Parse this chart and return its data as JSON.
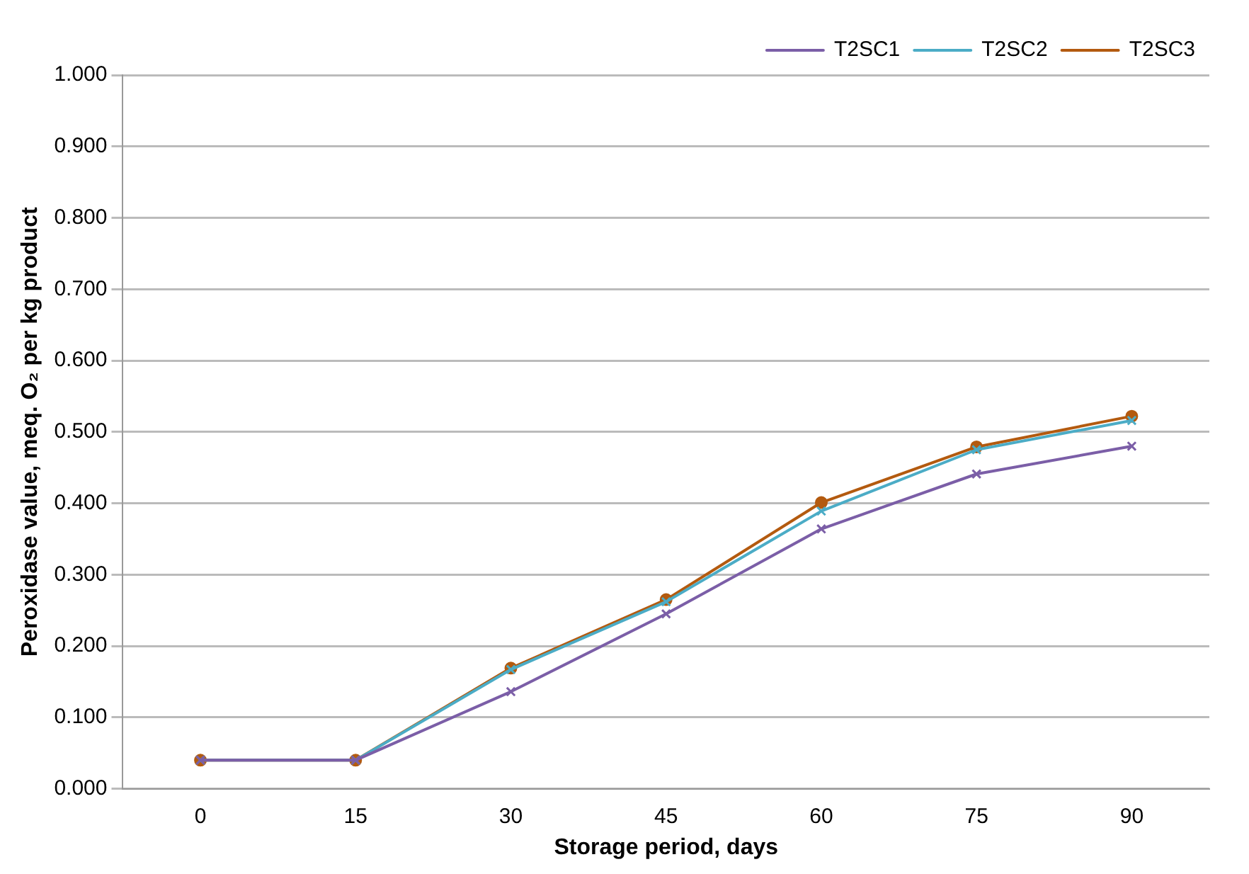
{
  "chart_data": {
    "type": "line",
    "xlabel": "Storage period, days",
    "ylabel": "Peroxidase value, meq. O₂ per kg product",
    "categories": [
      "0",
      "15",
      "30",
      "45",
      "60",
      "75",
      "90"
    ],
    "series": [
      {
        "name": "T2SC1",
        "color": "#7b5ea7",
        "marker": "cross",
        "values": [
          0.04,
          0.04,
          0.136,
          0.245,
          0.364,
          0.441,
          0.48
        ]
      },
      {
        "name": "T2SC2",
        "color": "#4bacc6",
        "marker": "cross",
        "values": [
          0.04,
          0.04,
          0.167,
          0.262,
          0.389,
          0.475,
          0.516
        ]
      },
      {
        "name": "T2SC3",
        "color": "#b35a0f",
        "marker": "circle",
        "values": [
          0.04,
          0.04,
          0.169,
          0.265,
          0.401,
          0.479,
          0.522
        ]
      }
    ],
    "ylim": [
      0,
      1
    ],
    "yticks": [
      {
        "value": 0,
        "label": "0.000"
      },
      {
        "value": 0.1,
        "label": "0.100"
      },
      {
        "value": 0.2,
        "label": "0.200"
      },
      {
        "value": 0.3,
        "label": "0.300"
      },
      {
        "value": 0.4,
        "label": "0.400"
      },
      {
        "value": 0.5,
        "label": "0.500"
      },
      {
        "value": 0.6,
        "label": "0.600"
      },
      {
        "value": 0.7,
        "label": "0.700"
      },
      {
        "value": 0.8,
        "label": "0.800"
      },
      {
        "value": 0.9,
        "label": "0.900"
      },
      {
        "value": 1,
        "label": "1.000"
      }
    ],
    "grid": "y",
    "legend": "top right",
    "line_style": "solid"
  }
}
